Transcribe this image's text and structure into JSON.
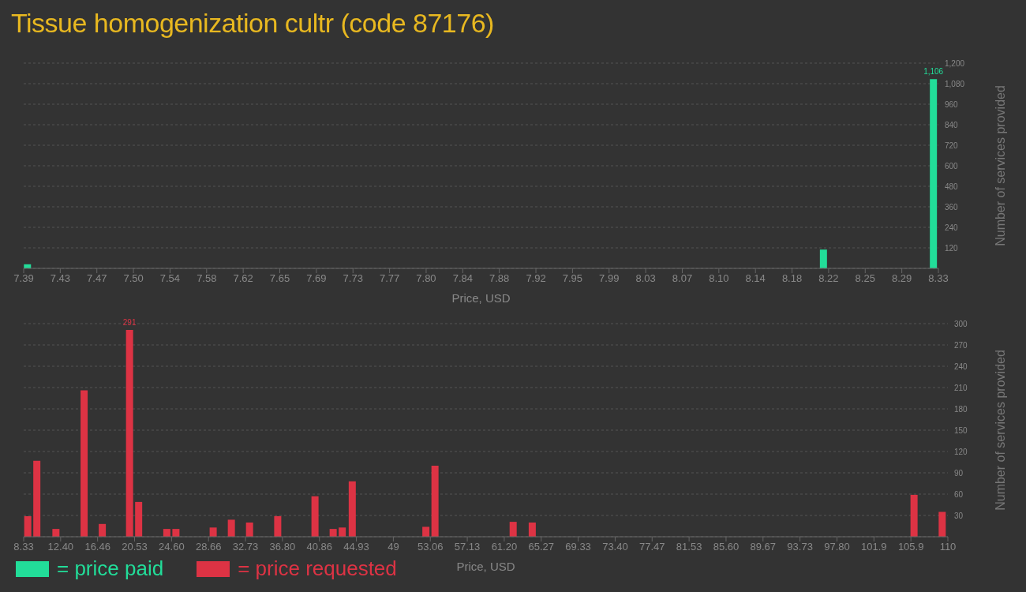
{
  "chart_data": [
    {
      "type": "bar",
      "title": "Tissue homogenization cultr (code 87176)",
      "xlabel": "Price, USD",
      "ylabel": "Number of services provided",
      "x": [
        7.394,
        8.212,
        8.325
      ],
      "series": [
        {
          "name": "= price paid",
          "color": "#22dd99",
          "values": [
            24,
            110,
            1106
          ],
          "value_labels": [
            null,
            null,
            "1,106"
          ]
        }
      ],
      "xlim": [
        7.39,
        8.33
      ],
      "xticks": [
        {
          "value": 7.39,
          "label": "7.39"
        },
        {
          "value": 7.4276,
          "label": "7.43"
        },
        {
          "value": 7.4652,
          "label": "7.47"
        },
        {
          "value": 7.5028,
          "label": "7.50"
        },
        {
          "value": 7.5404,
          "label": "7.54"
        },
        {
          "value": 7.578,
          "label": "7.58"
        },
        {
          "value": 7.6156,
          "label": "7.62"
        },
        {
          "value": 7.6532,
          "label": "7.65"
        },
        {
          "value": 7.6908,
          "label": "7.69"
        },
        {
          "value": 7.7284,
          "label": "7.73"
        },
        {
          "value": 7.766,
          "label": "7.77"
        },
        {
          "value": 7.8036,
          "label": "7.80"
        },
        {
          "value": 7.8412,
          "label": "7.84"
        },
        {
          "value": 7.8788,
          "label": "7.88"
        },
        {
          "value": 7.9164,
          "label": "7.92"
        },
        {
          "value": 7.954,
          "label": "7.95"
        },
        {
          "value": 7.9916,
          "label": "7.99"
        },
        {
          "value": 8.0292,
          "label": "8.03"
        },
        {
          "value": 8.0668,
          "label": "8.07"
        },
        {
          "value": 8.1044,
          "label": "8.10"
        },
        {
          "value": 8.142,
          "label": "8.14"
        },
        {
          "value": 8.1796,
          "label": "8.18"
        },
        {
          "value": 8.2172,
          "label": "8.22"
        },
        {
          "value": 8.2548,
          "label": "8.25"
        },
        {
          "value": 8.2924,
          "label": "8.29"
        },
        {
          "value": 8.33,
          "label": "8.33"
        }
      ],
      "ylim": [
        0,
        1200
      ],
      "yticks": [
        {
          "value": 0,
          "label": null
        },
        120,
        240,
        360,
        480,
        600,
        720,
        840,
        960,
        {
          "value": 1080,
          "label": "1,080"
        },
        {
          "value": 1200,
          "label": "1,200"
        }
      ],
      "grid": "y",
      "legend": "bottom left"
    },
    {
      "type": "bar",
      "xlabel": "Price, USD",
      "ylabel": "Number of services provided",
      "x": [
        8.8,
        9.8,
        11.9,
        15.0,
        17.0,
        20.0,
        21.0,
        24.1,
        25.1,
        29.2,
        31.2,
        33.2,
        36.3,
        40.4,
        42.4,
        43.4,
        44.5,
        52.6,
        53.6,
        62.2,
        64.3,
        106.3,
        109.4
      ],
      "series": [
        {
          "name": "= price requested",
          "color": "#dd3344",
          "values": [
            29,
            107,
            11,
            206,
            18,
            291,
            49,
            11,
            11,
            13,
            24,
            20,
            29,
            57,
            11,
            13,
            78,
            14,
            100,
            21,
            20,
            59,
            35
          ],
          "value_labels": [
            null,
            null,
            null,
            null,
            null,
            "291",
            null,
            null,
            null,
            null,
            null,
            null,
            null,
            null,
            null,
            null,
            null,
            null,
            null,
            null,
            null,
            null,
            null
          ]
        }
      ],
      "xlim": [
        8.33,
        110
      ],
      "xticks": [
        {
          "value": 8.33,
          "label": "8.33"
        },
        {
          "value": 12.3968,
          "label": "12.40"
        },
        {
          "value": 16.4636,
          "label": "16.46"
        },
        {
          "value": 20.5304,
          "label": "20.53"
        },
        {
          "value": 24.5972,
          "label": "24.60"
        },
        {
          "value": 28.664,
          "label": "28.66"
        },
        {
          "value": 32.7308,
          "label": "32.73"
        },
        {
          "value": 36.7976,
          "label": "36.80"
        },
        {
          "value": 40.8644,
          "label": "40.86"
        },
        {
          "value": 44.9312,
          "label": "44.93"
        },
        {
          "value": 48.998,
          "label": "49"
        },
        {
          "value": 53.0648,
          "label": "53.06"
        },
        {
          "value": 57.1316,
          "label": "57.13"
        },
        {
          "value": 61.1984,
          "label": "61.20"
        },
        {
          "value": 65.2652,
          "label": "65.27"
        },
        {
          "value": 69.332,
          "label": "69.33"
        },
        {
          "value": 73.3988,
          "label": "73.40"
        },
        {
          "value": 77.4656,
          "label": "77.47"
        },
        {
          "value": 81.5324,
          "label": "81.53"
        },
        {
          "value": 85.5992,
          "label": "85.60"
        },
        {
          "value": 89.666,
          "label": "89.67"
        },
        {
          "value": 93.7328,
          "label": "93.73"
        },
        {
          "value": 97.7996,
          "label": "97.80"
        },
        {
          "value": 101.8664,
          "label": "101.9"
        },
        {
          "value": 105.9332,
          "label": "105.9"
        },
        110
      ],
      "ylim": [
        0,
        300
      ],
      "yticks": [
        {
          "value": 0,
          "label": null
        },
        30,
        60,
        90,
        120,
        150,
        180,
        210,
        240,
        270,
        300
      ],
      "grid": "y",
      "legend": "bottom left"
    }
  ]
}
